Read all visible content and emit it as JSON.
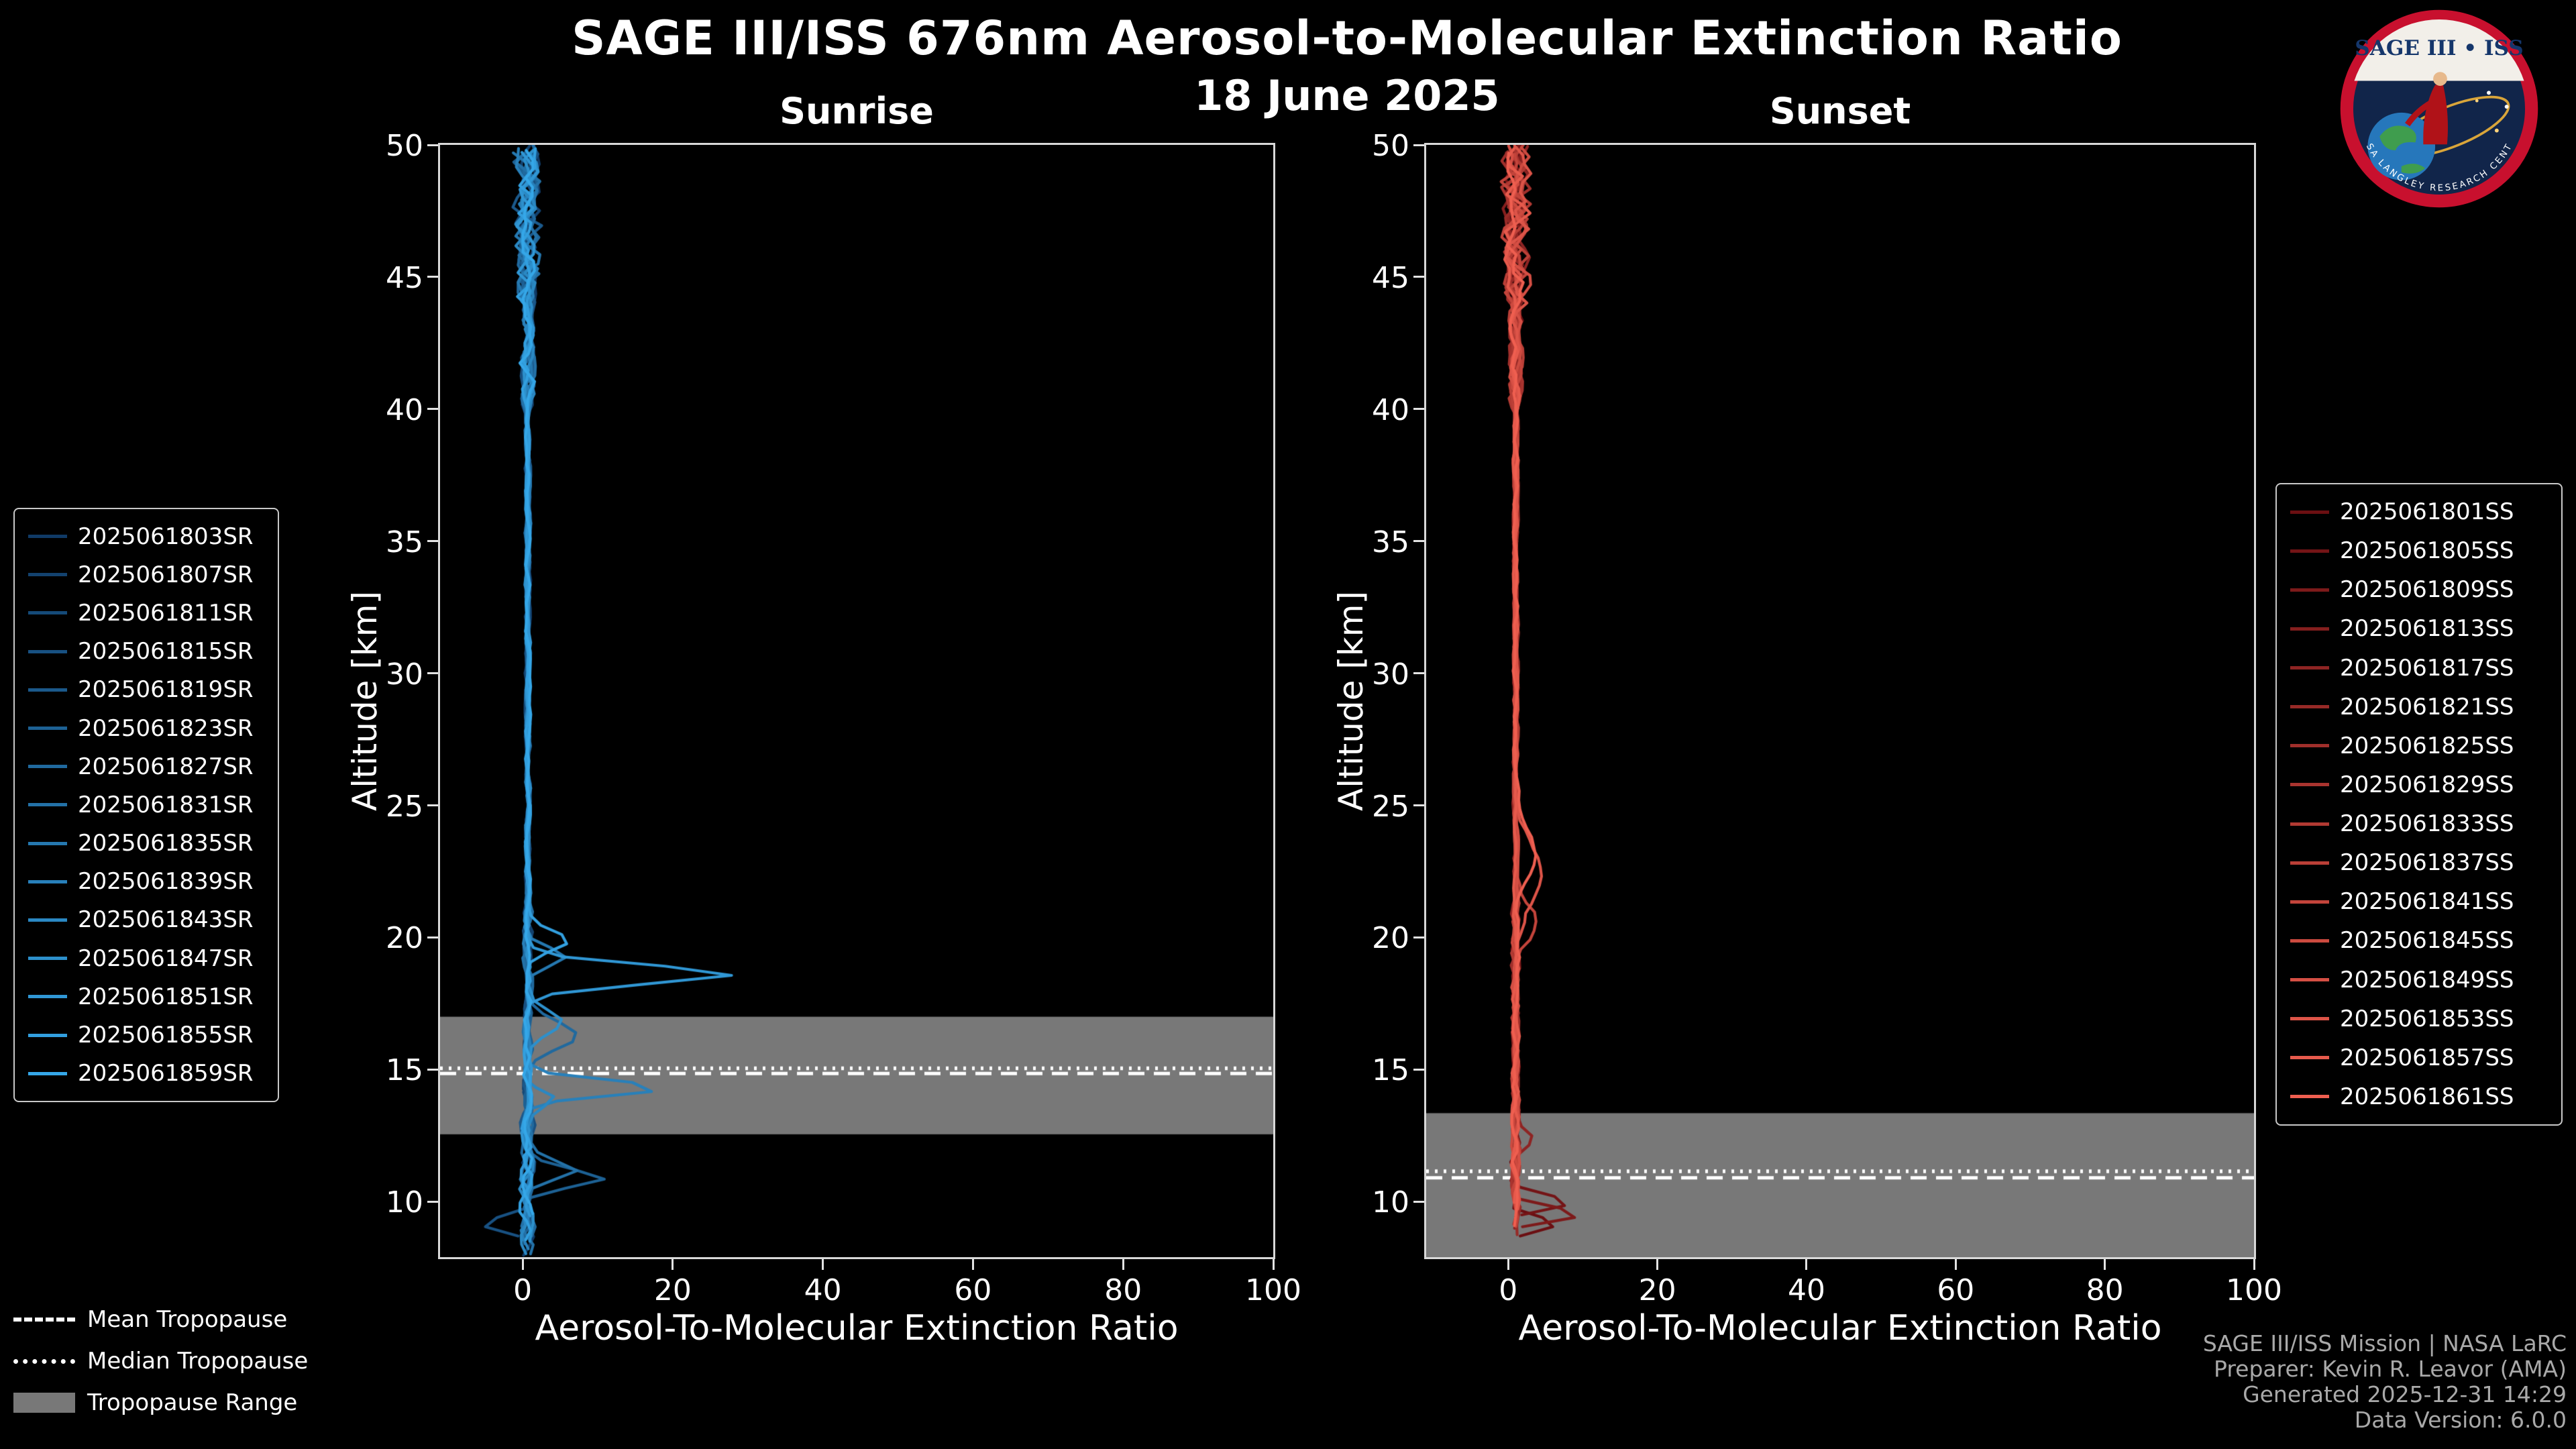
{
  "header": {
    "title": "SAGE III/ISS 676nm Aerosol-to-Molecular Extinction Ratio",
    "date": "18 June 2025"
  },
  "footer": {
    "lines": [
      "SAGE III/ISS Mission | NASA LaRC",
      "Preparer: Kevin R. Leavor (AMA)",
      "Generated 2025-12-31 14:29",
      "Data Version: 6.0.0"
    ]
  },
  "tropopause_legend": [
    {
      "label": "Mean Tropopause",
      "style": "dashed"
    },
    {
      "label": "Median Tropopause",
      "style": "dotted"
    },
    {
      "label": "Tropopause Range",
      "style": "range"
    }
  ],
  "logo": {
    "title": "SAGE III • ISS",
    "ring_text": "NASA LANGLEY RESEARCH CENTER"
  },
  "chart_data": {
    "type": "line",
    "title": "SAGE III/ISS 676nm Aerosol-to-Molecular Extinction Ratio",
    "subtitle": "18 June 2025",
    "band_color": "#787878",
    "grid": false,
    "panels": [
      {
        "id": "sunrise",
        "title": "Sunrise",
        "xlabel": "Aerosol-To-Molecular Extinction Ratio",
        "ylabel": "Altitude [km]",
        "xlim": [
          -11,
          100
        ],
        "ylim": [
          7.9,
          50
        ],
        "xticks": [
          0,
          20,
          40,
          60,
          80,
          100
        ],
        "yticks": [
          10,
          15,
          20,
          25,
          30,
          35,
          40,
          45,
          50
        ],
        "line_colors": [
          "#103a66",
          "#35a7e8"
        ],
        "tropopause": {
          "mean_km": 14.85,
          "median_km": 15.05,
          "range_km": [
            12.55,
            17.0
          ]
        },
        "series": [
          "2025061803SR",
          "2025061807SR",
          "2025061811SR",
          "2025061815SR",
          "2025061819SR",
          "2025061823SR",
          "2025061827SR",
          "2025061831SR",
          "2025061835SR",
          "2025061839SR",
          "2025061843SR",
          "2025061847SR",
          "2025061851SR",
          "2025061855SR",
          "2025061859SR"
        ],
        "representative_profile": [
          [
            8.5,
            0.8
          ],
          [
            10,
            1.0
          ],
          [
            12,
            0.8
          ],
          [
            14,
            1.0
          ],
          [
            16,
            1.2
          ],
          [
            18,
            1.0
          ],
          [
            19,
            1.5
          ],
          [
            20,
            1.0
          ],
          [
            25,
            0.8
          ],
          [
            30,
            0.7
          ],
          [
            35,
            0.7
          ],
          [
            40,
            0.8
          ],
          [
            45,
            0.9
          ],
          [
            50,
            1.0
          ]
        ],
        "profile": {
          "baseline_ratio": 0.7,
          "bottom_km_range": [
            7.95,
            9.7
          ],
          "noise_profile": [
            {
              "below_km": 13,
              "sd": 0.85
            },
            {
              "below_km": 21,
              "sd": 0.5
            },
            {
              "below_km": 40,
              "sd": 0.3
            },
            {
              "below_km": 44,
              "sd": 0.8
            },
            {
              "below_km": 51,
              "sd": 1.6
            }
          ]
        },
        "features": [
          {
            "series_index": 12,
            "altitude_km": 18.6,
            "peak_ratio": 27.5,
            "width_km": 0.5
          },
          {
            "series_index": 9,
            "altitude_km": 14.3,
            "peak_ratio": 18.5,
            "width_km": 0.4
          },
          {
            "series_index": 6,
            "altitude_km": 16.3,
            "peak_ratio": 7.0,
            "width_km": 0.7
          },
          {
            "series_index": 13,
            "altitude_km": 19.9,
            "peak_ratio": 6.0,
            "width_km": 0.5
          },
          {
            "series_index": 8,
            "altitude_km": 19.3,
            "peak_ratio": 5.0,
            "width_km": 0.5
          },
          {
            "series_index": 11,
            "altitude_km": 16.8,
            "peak_ratio": 4.5,
            "width_km": 0.6
          },
          {
            "series_index": 5,
            "altitude_km": 10.9,
            "peak_ratio": 10.0,
            "width_km": 0.45
          },
          {
            "series_index": 7,
            "altitude_km": 11.2,
            "peak_ratio": 6.5,
            "width_km": 0.5
          },
          {
            "series_index": 3,
            "altitude_km": 9.2,
            "peak_ratio": -6.0,
            "width_km": 0.35
          },
          {
            "series_index": 10,
            "altitude_km": 13.9,
            "peak_ratio": 3.5,
            "width_km": 0.4
          }
        ]
      },
      {
        "id": "sunset",
        "title": "Sunset",
        "xlabel": "Aerosol-To-Molecular Extinction Ratio",
        "ylabel": "Altitude [km]",
        "xlim": [
          -11,
          100
        ],
        "ylim": [
          7.9,
          50
        ],
        "xticks": [
          0,
          20,
          40,
          60,
          80,
          100
        ],
        "yticks": [
          10,
          15,
          20,
          25,
          30,
          35,
          40,
          45,
          50
        ],
        "line_colors": [
          "#6b0f12",
          "#ef5f50"
        ],
        "tropopause": {
          "mean_km": 10.9,
          "median_km": 11.15,
          "range_km": [
            7.9,
            13.35
          ]
        },
        "series": [
          "2025061801SS",
          "2025061805SS",
          "2025061809SS",
          "2025061813SS",
          "2025061817SS",
          "2025061821SS",
          "2025061825SS",
          "2025061829SS",
          "2025061833SS",
          "2025061837SS",
          "2025061841SS",
          "2025061845SS",
          "2025061849SS",
          "2025061853SS",
          "2025061857SS",
          "2025061861SS"
        ],
        "representative_profile": [
          [
            9,
            1.2
          ],
          [
            10,
            1.5
          ],
          [
            12,
            1.2
          ],
          [
            15,
            1.0
          ],
          [
            18,
            1.2
          ],
          [
            21,
            1.8
          ],
          [
            24,
            1.6
          ],
          [
            27,
            1.0
          ],
          [
            30,
            0.9
          ],
          [
            35,
            0.8
          ],
          [
            40,
            0.8
          ],
          [
            45,
            0.9
          ],
          [
            50,
            1.0
          ]
        ],
        "profile": {
          "baseline_ratio": 1.0,
          "bottom_km_range": [
            8.6,
            10.8
          ],
          "noise_profile": [
            {
              "below_km": 13,
              "sd": 0.5
            },
            {
              "below_km": 21,
              "sd": 0.45
            },
            {
              "below_km": 40,
              "sd": 0.3
            },
            {
              "below_km": 44,
              "sd": 0.8
            },
            {
              "below_km": 51,
              "sd": 1.5
            }
          ]
        },
        "features": [
          {
            "series_index": 13,
            "altitude_km": 22.3,
            "peak_ratio": 3.2,
            "width_km": 1.8
          },
          {
            "series_index": 15,
            "altitude_km": 23.2,
            "peak_ratio": 2.8,
            "width_km": 1.2
          },
          {
            "series_index": 10,
            "altitude_km": 20.6,
            "peak_ratio": 2.4,
            "width_km": 1.0
          },
          {
            "series_index": 2,
            "altitude_km": 9.55,
            "peak_ratio": 9.5,
            "width_km": 0.3
          },
          {
            "series_index": 1,
            "altitude_km": 10.0,
            "peak_ratio": 8.0,
            "width_km": 0.3
          },
          {
            "series_index": 0,
            "altitude_km": 9.2,
            "peak_ratio": 6.0,
            "width_km": 0.3
          },
          {
            "series_index": 4,
            "altitude_km": 12.4,
            "peak_ratio": 2.5,
            "width_km": 0.5
          }
        ]
      }
    ]
  }
}
